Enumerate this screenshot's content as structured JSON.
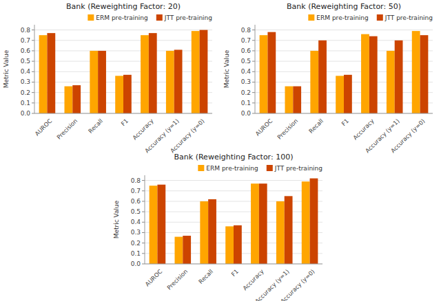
{
  "chart_data": [
    {
      "type": "bar",
      "title": "Bank (Reweighting Factor: 20)",
      "categories": [
        "AUROC",
        "Precision",
        "Recall",
        "F1",
        "Accuracy",
        "Accuracy (y=1)",
        "Accuracy (y=0)"
      ],
      "series": [
        {
          "name": "ERM pre-training",
          "color": "#FFA500",
          "values": [
            0.75,
            0.26,
            0.6,
            0.36,
            0.75,
            0.6,
            0.79
          ]
        },
        {
          "name": "JTT pre-training",
          "color": "#CC4400",
          "values": [
            0.77,
            0.27,
            0.6,
            0.37,
            0.77,
            0.61,
            0.8
          ]
        }
      ],
      "ylabel": "Metric Value",
      "ylim": [
        0.0,
        0.85
      ],
      "yticks": [
        {
          "value": 0.0,
          "label": "0.0"
        },
        0.1,
        0.2,
        0.3,
        0.4,
        0.5,
        0.6,
        0.7,
        0.8
      ],
      "grid": true,
      "legend": "upper right"
    },
    {
      "type": "bar",
      "title": "Bank (Reweighting Factor: 50)",
      "categories": [
        "AUROC",
        "Precision",
        "Recall",
        "F1",
        "Accuracy",
        "Accuracy (y=1)",
        "Accuracy (y=0)"
      ],
      "series": [
        {
          "name": "ERM pre-training",
          "color": "#FFA500",
          "values": [
            0.75,
            0.26,
            0.6,
            0.36,
            0.76,
            0.6,
            0.79
          ]
        },
        {
          "name": "JTT pre-training",
          "color": "#CC4400",
          "values": [
            0.78,
            0.26,
            0.7,
            0.37,
            0.74,
            0.7,
            0.75
          ]
        }
      ],
      "ylabel": "Metric Value",
      "ylim": [
        0.0,
        0.85
      ],
      "yticks": [
        {
          "value": 0.0,
          "label": "0.0"
        },
        0.1,
        0.2,
        0.3,
        0.4,
        0.5,
        0.6,
        0.7,
        0.8
      ],
      "grid": true,
      "legend": "upper right"
    },
    {
      "type": "bar",
      "title": "Bank (Reweighting Factor: 100)",
      "categories": [
        "AUROC",
        "Precision",
        "Recall",
        "F1",
        "Accuracy",
        "Accuracy (y=1)",
        "Accuracy (y=0)"
      ],
      "series": [
        {
          "name": "ERM pre-training",
          "color": "#FFA500",
          "values": [
            0.75,
            0.26,
            0.6,
            0.36,
            0.77,
            0.6,
            0.79
          ]
        },
        {
          "name": "JTT pre-training",
          "color": "#CC4400",
          "values": [
            0.76,
            0.27,
            0.62,
            0.37,
            0.77,
            0.65,
            0.82
          ]
        }
      ],
      "ylabel": "Metric Value",
      "ylim": [
        0.0,
        0.85
      ],
      "yticks": [
        {
          "value": 0.0,
          "label": "0.0"
        },
        0.1,
        0.2,
        0.3,
        0.4,
        0.5,
        0.6,
        0.7,
        0.8
      ],
      "grid": true,
      "legend": "upper right"
    }
  ]
}
